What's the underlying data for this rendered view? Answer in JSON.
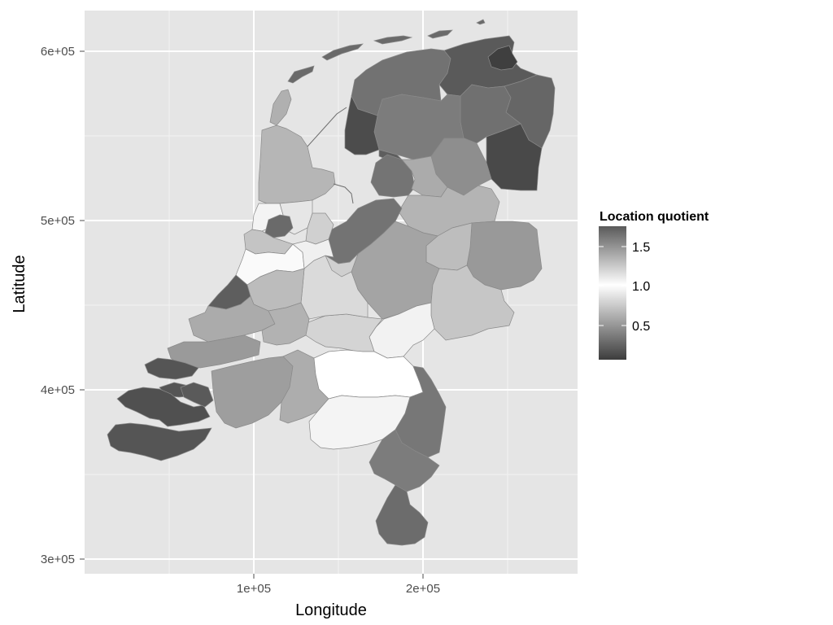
{
  "axes": {
    "x_title": "Longitude",
    "y_title": "Latitude",
    "x_ticks": [
      "1e+05",
      "2e+05"
    ],
    "y_ticks": [
      "3e+05",
      "4e+05",
      "5e+05",
      "6e+05"
    ],
    "xlim": [
      0,
      300000
    ],
    "ylim": [
      290000,
      620000
    ],
    "x_tick_values": [
      100000,
      200000
    ],
    "y_tick_values": [
      300000,
      400000,
      500000,
      600000
    ]
  },
  "legend": {
    "title": "Location quotient",
    "labels": [
      "1.5",
      "1.0",
      "0.5"
    ],
    "label_values": [
      1.5,
      1.0,
      0.5
    ],
    "range": [
      0.05,
      1.75
    ],
    "colors": {
      "low": "#3d3d3d",
      "mid": "#ffffff",
      "high": "#5a5a5a"
    }
  },
  "colors": {
    "panel_bg": "#e5e5e5",
    "grid_major": "#ffffff",
    "grid_minor": "#f2f2f2",
    "water_line": "#6e6e6e"
  }
}
